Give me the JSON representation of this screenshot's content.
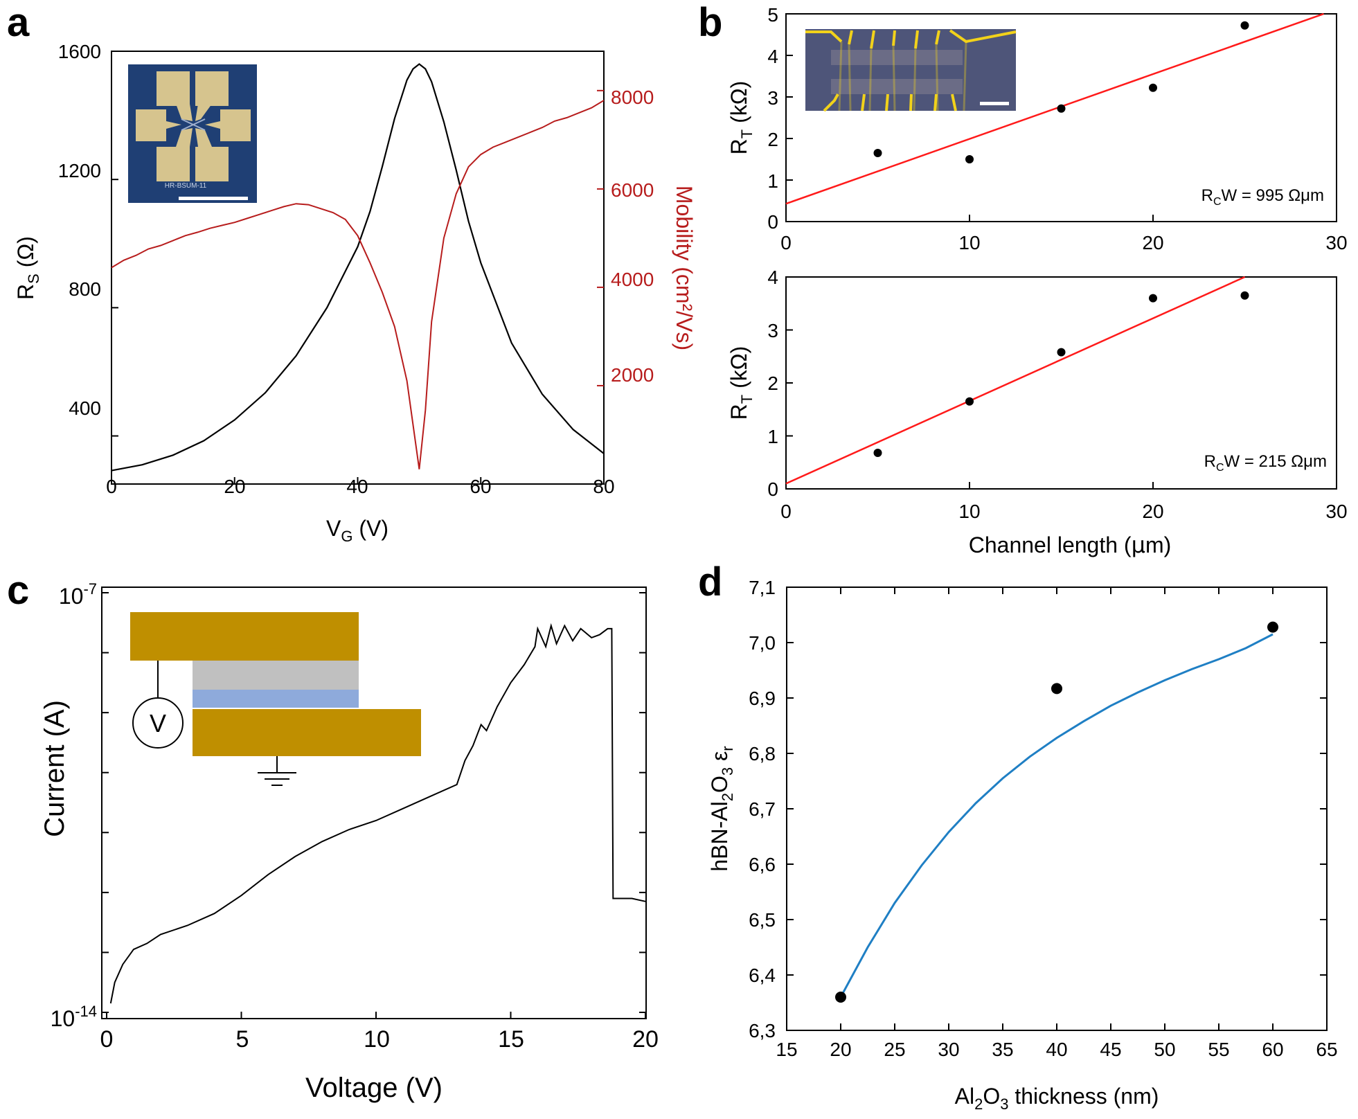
{
  "panels": {
    "a": {
      "letter": "a",
      "chart_type": "line",
      "xlabel_main": "V",
      "xlabel_sub": "G",
      "xlabel_unit": " (V)",
      "ylabel_main": "R",
      "ylabel_sub": "S",
      "ylabel_unit": " (Ω)",
      "y2label": "Mobility (cm²/Vs)",
      "xticks": [
        "0",
        "20",
        "40",
        "60",
        "80"
      ],
      "yticks": [
        "400",
        "800",
        "1200",
        "1600"
      ],
      "y2ticks": [
        "2000",
        "4000",
        "6000",
        "8000"
      ],
      "xlim": [
        0,
        80
      ],
      "ylim": [
        250,
        1600
      ],
      "y2lim": [
        0,
        8800
      ],
      "inset_label": "HR-BSUM-11",
      "series_rs": {
        "name": "R_S",
        "color": "#000000",
        "x": [
          0,
          5,
          10,
          15,
          20,
          25,
          30,
          35,
          40,
          42,
          44,
          46,
          48,
          49,
          50,
          51,
          52,
          54,
          56,
          58,
          60,
          65,
          70,
          75,
          80
        ],
        "y": [
          292,
          310,
          340,
          385,
          450,
          535,
          650,
          800,
          990,
          1100,
          1240,
          1390,
          1510,
          1545,
          1560,
          1545,
          1505,
          1380,
          1230,
          1070,
          940,
          690,
          530,
          420,
          345
        ]
      },
      "series_mobility": {
        "name": "Mobility",
        "color": "#b71c1c",
        "x": [
          0,
          2,
          4,
          6,
          8,
          10,
          12,
          14,
          16,
          18,
          20,
          22,
          24,
          26,
          28,
          30,
          32,
          34,
          36,
          38,
          40,
          42,
          44,
          46,
          48,
          49,
          50,
          51,
          52,
          54,
          56,
          58,
          60,
          62,
          64,
          66,
          68,
          70,
          72,
          74,
          76,
          78,
          80
        ],
        "y": [
          4400,
          4550,
          4650,
          4780,
          4850,
          4950,
          5050,
          5120,
          5200,
          5260,
          5320,
          5400,
          5480,
          5560,
          5640,
          5700,
          5680,
          5600,
          5520,
          5380,
          5050,
          4500,
          3900,
          3200,
          2100,
          1200,
          300,
          1500,
          3300,
          5000,
          5900,
          6450,
          6700,
          6850,
          6950,
          7050,
          7150,
          7250,
          7380,
          7450,
          7550,
          7650,
          7800
        ]
      }
    },
    "b": {
      "letter": "b",
      "xlabel_pre": "Channel length (",
      "xlabel_mu": "μ",
      "xlabel_post": "m)",
      "xticks": [
        "0",
        "10",
        "20",
        "30"
      ],
      "ylabel_main": "R",
      "ylabel_sub": "T",
      "ylabel_unit": " (kΩ)",
      "top": {
        "chart_type": "scatter",
        "yticks": [
          "0",
          "1",
          "2",
          "3",
          "4",
          "5"
        ],
        "xlim": [
          0,
          30
        ],
        "ylim": [
          0,
          5
        ],
        "x": [
          5,
          10,
          15,
          20,
          25
        ],
        "y": [
          1.65,
          1.5,
          2.72,
          3.22,
          4.72
        ],
        "fit": {
          "x": [
            0,
            29.3
          ],
          "y": [
            0.43,
            5.0
          ],
          "color": "#ff1a1a"
        },
        "annotation_pre": "R",
        "annotation_sub": "C",
        "annotation_post": "W = 995 Ωμm"
      },
      "bottom": {
        "chart_type": "scatter",
        "yticks": [
          "0",
          "1",
          "2",
          "3",
          "4"
        ],
        "xlim": [
          0,
          30
        ],
        "ylim": [
          0,
          4
        ],
        "x": [
          5,
          10,
          15,
          20,
          25
        ],
        "y": [
          0.68,
          1.65,
          2.58,
          3.6,
          3.65
        ],
        "fit": {
          "x": [
            0,
            25
          ],
          "y": [
            0.1,
            4.0
          ],
          "color": "#ff1a1a"
        },
        "annotation_pre": "R",
        "annotation_sub": "C",
        "annotation_post": "W = 215 Ωμm"
      }
    },
    "c": {
      "letter": "c",
      "chart_type": "line",
      "xlabel": "Voltage (V)",
      "ylabel": "Current (A)",
      "xticks": [
        "0",
        "5",
        "10",
        "15",
        "20"
      ],
      "ytick_top_base": "10",
      "ytick_top_exp": "-7",
      "ytick_bottom_base": "10",
      "ytick_bottom_exp": "-14",
      "xlim": [
        0,
        20
      ],
      "ylim_log10": [
        -14,
        -7
      ],
      "inset_meter": "V",
      "series": {
        "name": "Current",
        "color": "#000000",
        "x": [
          0.15,
          0.3,
          0.6,
          1.0,
          1.5,
          2.0,
          3.0,
          4.0,
          5.0,
          6.0,
          7.0,
          8.0,
          9.0,
          10.0,
          11.0,
          12.0,
          13.0,
          13.3,
          13.6,
          13.9,
          14.1,
          14.5,
          15.0,
          15.5,
          15.9,
          16.0,
          16.3,
          16.5,
          16.7,
          17.0,
          17.3,
          17.6,
          18.0,
          18.3,
          18.6,
          18.75,
          18.8,
          18.85,
          19.5,
          20.0
        ],
        "y": [
          -13.85,
          -13.5,
          -13.2,
          -12.95,
          -12.85,
          -12.7,
          -12.55,
          -12.35,
          -12.05,
          -11.7,
          -11.4,
          -11.15,
          -10.95,
          -10.8,
          -10.6,
          -10.4,
          -10.2,
          -9.8,
          -9.55,
          -9.2,
          -9.3,
          -8.9,
          -8.5,
          -8.2,
          -7.9,
          -7.6,
          -7.9,
          -7.55,
          -7.85,
          -7.55,
          -7.8,
          -7.6,
          -7.75,
          -7.7,
          -7.6,
          -7.6,
          -12.1,
          -12.1,
          -12.1,
          -12.15
        ]
      }
    },
    "d": {
      "letter": "d",
      "chart_type": "scatter",
      "xlabel_pre": "Al",
      "xlabel_s1": "2",
      "xlabel_mid": "O",
      "xlabel_s2": "3",
      "xlabel_post": " thickness (nm)",
      "ylabel_pre": "hBN-Al",
      "ylabel_s1": "2",
      "ylabel_mid": "O",
      "ylabel_s2": "3",
      "ylabel_post": " ε",
      "ylabel_s3": "r",
      "xticks": [
        "15",
        "20",
        "25",
        "30",
        "35",
        "40",
        "45",
        "50",
        "55",
        "60",
        "65"
      ],
      "yticks": [
        "6,3",
        "6,4",
        "6,5",
        "6,6",
        "6,7",
        "6,8",
        "6,9",
        "7,0",
        "7,1"
      ],
      "xlim": [
        15,
        65
      ],
      "ylim": [
        6.3,
        7.1
      ],
      "x": [
        20,
        40,
        60
      ],
      "y": [
        6.36,
        6.917,
        7.028
      ],
      "fit": {
        "color": "#1f7fc4",
        "x": [
          20,
          22.5,
          25,
          27.5,
          30,
          32.5,
          35,
          37.5,
          40,
          42.5,
          45,
          47.5,
          50,
          52.5,
          55,
          57.5,
          60
        ],
        "y": [
          6.36,
          6.45,
          6.53,
          6.598,
          6.658,
          6.71,
          6.755,
          6.794,
          6.828,
          6.858,
          6.886,
          6.91,
          6.932,
          6.952,
          6.97,
          6.99,
          7.015
        ]
      }
    }
  }
}
